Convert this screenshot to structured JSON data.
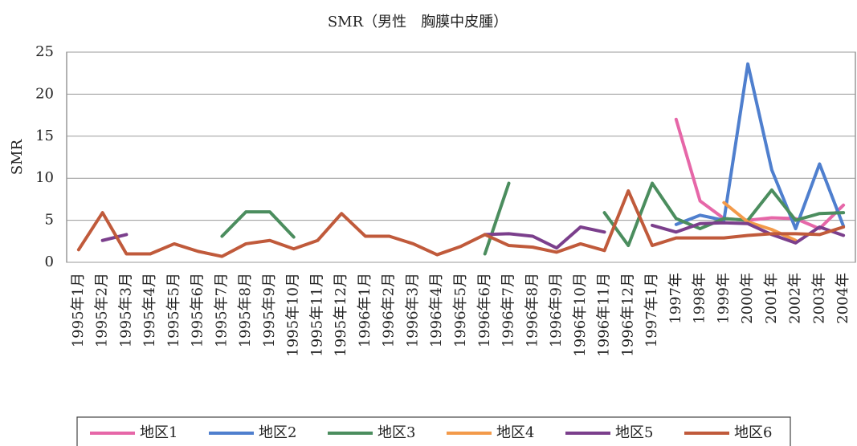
{
  "chart_data": {
    "type": "line",
    "title": "SMR（男性　胸膜中皮腫）",
    "y_label": "SMR",
    "categories": [
      "1995年1月",
      "1995年2月",
      "1995年3月",
      "1995年4月",
      "1995年5月",
      "1995年6月",
      "1995年7月",
      "1995年8月",
      "1995年9月",
      "1995年10月",
      "1995年11月",
      "1995年12月",
      "1996年1月",
      "1996年2月",
      "1996年3月",
      "1996年4月",
      "1996年5月",
      "1996年6月",
      "1996年7月",
      "1996年8月",
      "1996年9月",
      "1996年10月",
      "1996年11月",
      "1996年12月",
      "1997年1月",
      "1997年",
      "1998年",
      "1999年",
      "2000年",
      "2001年",
      "2002年",
      "2003年",
      "2004年"
    ],
    "series": [
      {
        "name": "地区1",
        "color": "#e667a8",
        "values": [
          null,
          null,
          null,
          null,
          null,
          null,
          null,
          null,
          null,
          null,
          null,
          null,
          null,
          null,
          null,
          null,
          null,
          null,
          null,
          null,
          null,
          null,
          null,
          null,
          null,
          17.0,
          7.3,
          5.2,
          5.0,
          5.3,
          5.2,
          4.0,
          6.8
        ]
      },
      {
        "name": "地区2",
        "color": "#4f7fce",
        "values": [
          null,
          null,
          null,
          null,
          null,
          null,
          null,
          null,
          null,
          null,
          null,
          null,
          null,
          null,
          null,
          null,
          null,
          null,
          null,
          null,
          null,
          null,
          null,
          null,
          null,
          4.5,
          5.6,
          5.0,
          23.6,
          11.0,
          4.0,
          11.7,
          4.3
        ]
      },
      {
        "name": "地区3",
        "color": "#4b8d5e",
        "values": [
          null,
          null,
          null,
          null,
          null,
          null,
          3.1,
          6.0,
          6.0,
          3.0,
          null,
          null,
          null,
          null,
          null,
          null,
          null,
          1.0,
          9.4,
          null,
          null,
          null,
          5.9,
          2.0,
          9.4,
          5.2,
          4.0,
          5.2,
          5.0,
          8.6,
          5.0,
          5.8,
          5.9
        ]
      },
      {
        "name": "地区4",
        "color": "#f39a4a",
        "values": [
          null,
          null,
          null,
          null,
          null,
          null,
          null,
          null,
          null,
          null,
          null,
          null,
          null,
          null,
          null,
          null,
          null,
          null,
          null,
          null,
          null,
          null,
          null,
          null,
          null,
          null,
          null,
          7.1,
          4.8,
          3.9,
          2.6,
          null,
          null
        ]
      },
      {
        "name": "地区5",
        "color": "#7b3f8c",
        "values": [
          null,
          2.6,
          3.3,
          null,
          null,
          null,
          null,
          null,
          null,
          null,
          null,
          null,
          null,
          null,
          null,
          null,
          null,
          3.3,
          3.4,
          3.1,
          1.7,
          4.2,
          3.6,
          null,
          4.4,
          3.6,
          4.6,
          4.7,
          4.6,
          3.3,
          2.3,
          4.2,
          3.2
        ]
      },
      {
        "name": "地区6",
        "color": "#c05a3b",
        "values": [
          1.5,
          5.9,
          1.0,
          1.0,
          2.2,
          1.3,
          0.7,
          2.2,
          2.6,
          1.6,
          2.6,
          5.8,
          3.1,
          3.1,
          2.2,
          0.9,
          1.9,
          3.3,
          2.0,
          1.8,
          1.2,
          2.2,
          1.4,
          8.5,
          2.0,
          2.9,
          2.9,
          2.9,
          3.2,
          3.4,
          3.4,
          3.3,
          4.2
        ]
      }
    ],
    "ylim": [
      0,
      25
    ],
    "yticks": [
      0,
      5,
      10,
      15,
      20,
      25
    ],
    "grid": true
  }
}
